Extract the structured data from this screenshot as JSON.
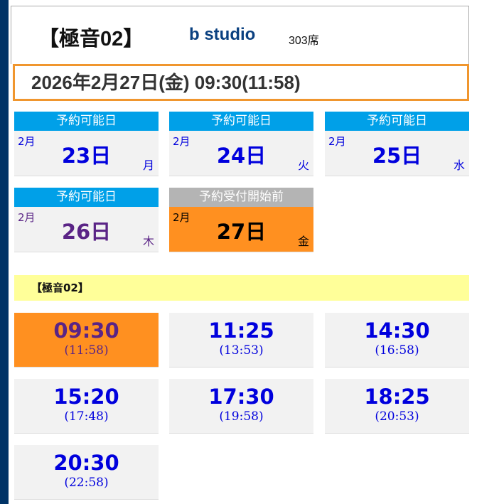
{
  "header": {
    "title": "【極音02】",
    "studio": "b studio",
    "seats": "303席"
  },
  "selected_datetime": "2026年2月27日(金) 09:30(11:58)",
  "days": [
    {
      "status": "予約可能日",
      "month": "2月",
      "day": "23日",
      "weekday": "月",
      "color": "#0000dd"
    },
    {
      "status": "予約可能日",
      "month": "2月",
      "day": "24日",
      "weekday": "火",
      "color": "#0000dd"
    },
    {
      "status": "予約可能日",
      "month": "2月",
      "day": "25日",
      "weekday": "水",
      "color": "#0000dd"
    },
    {
      "status": "予約可能日",
      "month": "2月",
      "day": "26日",
      "weekday": "木",
      "color": "#5a2486"
    },
    {
      "status": "予約受付開始前",
      "month": "2月",
      "day": "27日",
      "weekday": "金",
      "selected": true
    }
  ],
  "section_title": "【極音02】",
  "showtimes": [
    {
      "start": "09:30",
      "end": "(11:58)",
      "selected": true
    },
    {
      "start": "11:25",
      "end": "(13:53)"
    },
    {
      "start": "14:30",
      "end": "(16:58)"
    },
    {
      "start": "15:20",
      "end": "(17:48)"
    },
    {
      "start": "17:30",
      "end": "(19:58)"
    },
    {
      "start": "18:25",
      "end": "(20:53)"
    },
    {
      "start": "20:30",
      "end": "(22:58)"
    }
  ],
  "colors": {
    "sidebar": "#003366",
    "available": "#00a0e8",
    "selected": "#ff9020",
    "section": "#ffff99"
  }
}
